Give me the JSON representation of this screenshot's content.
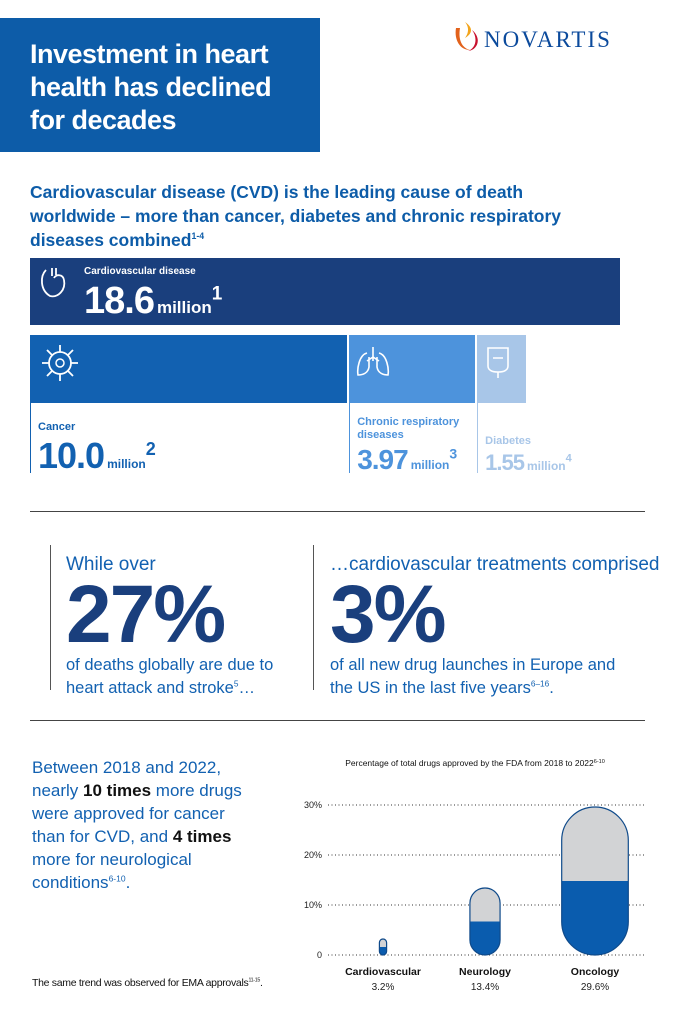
{
  "header": {
    "title": "Investment in heart health has declined for decades",
    "logo": "NOVARTIS"
  },
  "intro": {
    "text": "Cardiovascular disease (CVD) is the leading cause of death worldwide – more than cancer, diabetes and chronic respiratory diseases combined",
    "note": "1-4"
  },
  "stats": [
    {
      "lead": "While over",
      "figure": "27%",
      "text": "of deaths globally are due to heart attack and stroke",
      "note": "5",
      "tail": "…"
    },
    {
      "lead": "…cardiovascular treatments comprised",
      "figure": "3%",
      "text": "of all new drug launches in Europe and the US in the last five years",
      "note": "6–16",
      "tail": "."
    }
  ],
  "summary": {
    "parts": [
      "Between 2018 and 2022, nearly ",
      "10 times",
      " more drugs were approved for cancer than for CVD, and ",
      "4 times",
      " more for neurological conditions"
    ],
    "note": "6-10",
    "tail": "."
  },
  "footnote": {
    "text": "The same trend was observed for EMA approvals",
    "note": "11-15",
    "tail": "."
  },
  "chart_data": [
    {
      "type": "bar",
      "orientation": "horizontal",
      "categories": [
        "Cardiovascular disease",
        "Cancer",
        "Chronic respiratory diseases",
        "Diabetes"
      ],
      "values": [
        18.6,
        10,
        3.97,
        1.55
      ],
      "value_labels": [
        "18.6",
        "10.0",
        "3.97",
        "1.55"
      ],
      "unit": "million",
      "notes": [
        "1",
        "2",
        "3",
        "4"
      ],
      "colors": [
        "#1a3f7d",
        "#1261b1",
        "#4d93dc",
        "#a8c6e8"
      ]
    },
    {
      "type": "pill",
      "title": "Percentage of total drugs approved by the FDA from 2018 to 2022",
      "title_note": "6-10",
      "categories": [
        "Cardiovascular",
        "Neurology",
        "Oncology"
      ],
      "values": [
        3.2,
        13.4,
        29.6
      ],
      "value_labels": [
        "3.2%",
        "13.4%",
        "29.6%"
      ],
      "ylim": [
        0,
        30
      ],
      "yticks": [
        0,
        {
          "value": 10,
          "label": "10%"
        },
        {
          "value": 20,
          "label": "20%"
        },
        {
          "value": 30,
          "label": "30%"
        }
      ],
      "grid": true,
      "color": "#0a5cae",
      "empty_color": "#d2d3d5",
      "outline": "#0f4a8a"
    }
  ]
}
